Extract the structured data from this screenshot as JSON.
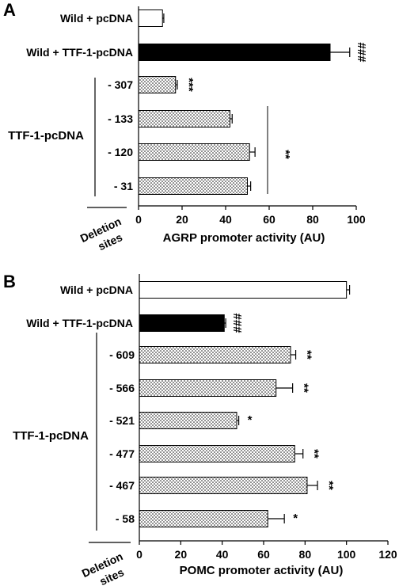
{
  "chart_data": [
    {
      "type": "bar",
      "orientation": "horizontal",
      "panel_label": "A",
      "xlabel": "AGRP promoter activity (AU)",
      "xlim": [
        0,
        100
      ],
      "xticks": [
        "0",
        "20",
        "40",
        "60",
        "80",
        "100"
      ],
      "group_label": "TTF-1-pcDNA",
      "deletion_label_line1": "Deletion",
      "deletion_label_line2": "sites",
      "bracket_annotation": "**",
      "bars": [
        {
          "label": "Wild + pcDNA",
          "value": 11,
          "error": 0.6,
          "style": "open",
          "annotation": ""
        },
        {
          "label": "Wild + TTF-1-pcDNA",
          "value": 88,
          "error": 9,
          "style": "solid",
          "annotation": "###"
        },
        {
          "label": "- 307",
          "value": 17,
          "error": 0.8,
          "style": "dotted",
          "annotation": "***"
        },
        {
          "label": "- 133",
          "value": 42,
          "error": 1.0,
          "style": "dotted",
          "annotation": ""
        },
        {
          "label": "- 120",
          "value": 51,
          "error": 2.5,
          "style": "dotted",
          "annotation": ""
        },
        {
          "label": "- 31",
          "value": 50,
          "error": 1.5,
          "style": "dotted",
          "annotation": ""
        }
      ]
    },
    {
      "type": "bar",
      "orientation": "horizontal",
      "panel_label": "B",
      "xlabel": "POMC promoter activity (AU)",
      "xlim": [
        0,
        120
      ],
      "xticks": [
        "0",
        "20",
        "40",
        "60",
        "80",
        "100",
        "120"
      ],
      "group_label": "TTF-1-pcDNA",
      "deletion_label_line1": "Deletion",
      "deletion_label_line2": "sites",
      "bars": [
        {
          "label": "Wild + pcDNA",
          "value": 100,
          "error": 1.5,
          "style": "open",
          "annotation": ""
        },
        {
          "label": "Wild + TTF-1-pcDNA",
          "value": 41,
          "error": 0.7,
          "style": "solid",
          "annotation": "###"
        },
        {
          "label": "- 609",
          "value": 73,
          "error": 2.5,
          "style": "dotted",
          "annotation": "**"
        },
        {
          "label": "- 566",
          "value": 66,
          "error": 8,
          "style": "dotted",
          "annotation": "**"
        },
        {
          "label": "- 521",
          "value": 47,
          "error": 1.0,
          "style": "dotted",
          "annotation": "*"
        },
        {
          "label": "- 477",
          "value": 75,
          "error": 4,
          "style": "dotted",
          "annotation": "**"
        },
        {
          "label": "- 467",
          "value": 81,
          "error": 5,
          "style": "dotted",
          "annotation": "**"
        },
        {
          "label": "- 58",
          "value": 62,
          "error": 8,
          "style": "dotted",
          "annotation": "*"
        }
      ]
    }
  ]
}
